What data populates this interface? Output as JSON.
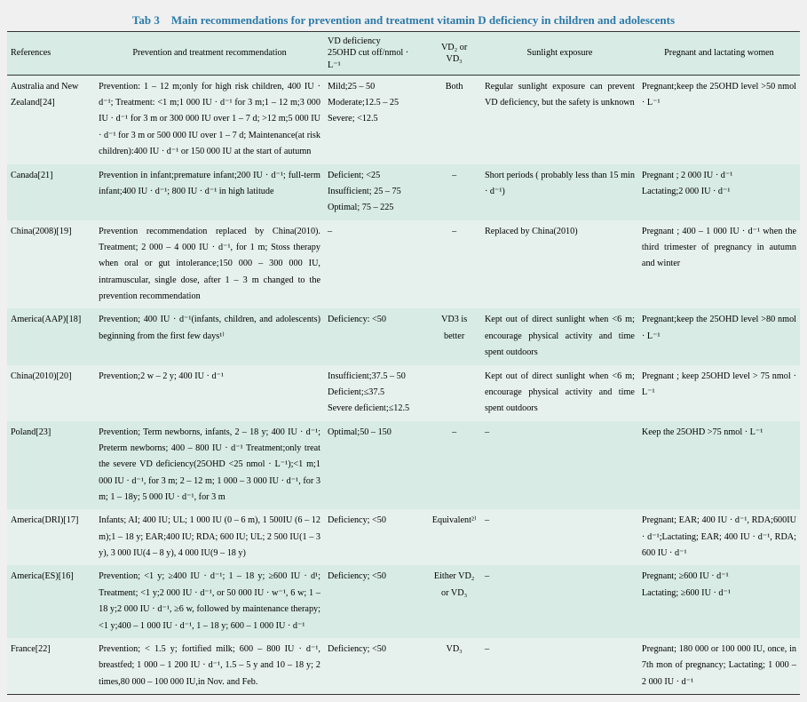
{
  "title": "Tab 3　Main recommendations for prevention and treatment vitamin D deficiency in children and adolescents",
  "columns": {
    "ref": "References",
    "prev": "Prevention and treatment recommendation",
    "vd": "VD deficiency\n25OHD cut off/nmol · L⁻¹",
    "vd2": "VD₂ or\nVD₃",
    "sun": "Sunlight exposure",
    "preg": "Pregnant and lactating women"
  },
  "rows": [
    {
      "ref": "Australia and New Zealand[24]",
      "prev": "Prevention: 1 – 12 m;only for high risk children, 400 IU · d⁻¹; Treatment: <1 m;1 000 IU · d⁻¹ for 3 m;1 – 12 m;3 000 IU · d⁻¹ for 3 m or 300 000 IU over 1 – 7 d; >12 m;5 000 IU · d⁻¹ for 3 m or 500 000 IU over 1 – 7 d; Maintenance(at risk children):400 IU · d⁻¹ or 150 000 IU at the start of autumn",
      "vd": "Mild;25 – 50\nModerate;12.5 – 25\nSevere; <12.5",
      "vd2": "Both",
      "sun": "Regular sunlight exposure can prevent VD deficiency, but the safety is unknown",
      "preg": "Pregnant;keep the 25OHD level >50 nmol · L⁻¹"
    },
    {
      "ref": "Canada[21]",
      "prev": "Prevention in infant;premature infant;200 IU · d⁻¹; full-term infant;400 IU · d⁻¹; 800 IU · d⁻¹ in high latitude",
      "vd": "Deficient; <25\nInsufficient; 25 – 75\nOptimal; 75 – 225",
      "vd2": "–",
      "sun": "Short periods ( probably less than 15 min · d⁻¹)",
      "preg": "Pregnant ; 2 000 IU · d⁻¹\nLactating;2 000 IU · d⁻¹"
    },
    {
      "ref": "China(2008)[19]",
      "prev": "Prevention recommendation replaced by China(2010). Treatment; 2 000 – 4 000 IU · d⁻¹, for 1 m; Stoss therapy when oral or gut intolerance;150 000 – 300 000 IU, intramuscular, single dose, after 1 – 3 m changed to the prevention recommendation",
      "vd": "–",
      "vd2": "–",
      "sun": "Replaced by China(2010)",
      "preg": "Pregnant ; 400 – 1 000 IU · d⁻¹ when the third trimester of pregnancy in autumn and winter"
    },
    {
      "ref": "America(AAP)[18]",
      "prev": "Prevention; 400 IU · d⁻¹(infants, children, and adolescents) beginning from the first few days¹⁾",
      "vd": "Deficiency: <50",
      "vd2": "VD3 is better",
      "sun": "Kept out of direct sunlight when <6 m; encourage physical activity and time spent outdoors",
      "preg": "Pregnant;keep the 25OHD level >80 nmol · L⁻¹"
    },
    {
      "ref": "China(2010)[20]",
      "prev": "Prevention;2 w – 2 y; 400 IU · d⁻¹",
      "vd": "Insufficient;37.5 – 50\nDeficient;≤37.5\nSevere deficient;≤12.5",
      "vd2": "",
      "sun": "Kept out of direct sunlight when <6 m; encourage physical activity and time spent outdoors",
      "preg": "Pregnant ; keep 25OHD level > 75 nmol · L⁻¹"
    },
    {
      "ref": "Poland[23]",
      "prev": "Prevention; Term newborns, infants, 2 – 18 y; 400 IU · d⁻¹; Preterm newborns; 400 – 800 IU · d⁻¹ Treatment;only treat the severe VD deficiency(25OHD <25 nmol · L⁻¹);<1 m;1 000 IU · d⁻¹, for 3 m; 2 – 12 m; 1 000 – 3 000 IU · d⁻¹, for 3 m; 1 – 18y; 5 000 IU · d⁻¹, for 3 m",
      "vd": "Optimal;50 – 150",
      "vd2": "–",
      "sun": "–",
      "preg": "Keep the 25OHD >75 nmol · L⁻¹"
    },
    {
      "ref": "America(DRI)[17]",
      "prev": "Infants; AI; 400 IU; UL; 1 000 IU (0 – 6 m), 1 500IU (6 – 12 m);1 – 18 y; EAR;400 IU; RDA; 600 IU; UL; 2 500 IU(1 – 3 y), 3 000 IU(4 – 8 y), 4 000 IU(9 – 18 y)",
      "vd": "Deficiency; <50",
      "vd2": "Equivalent²⁾",
      "sun": "–",
      "preg": "Pregnant; EAR; 400 IU · d⁻¹, RDA;600IU · d⁻¹;Lactating; EAR; 400 IU · d⁻¹, RDA; 600 IU · d⁻¹"
    },
    {
      "ref": "America(ES)[16]",
      "prev": "Prevention; <1 y; ≥400 IU · d⁻¹; 1 – 18 y; ≥600 IU · d¹; Treatment; <1 y;2 000 IU · d⁻¹, or 50 000 IU · w⁻¹, 6 w; 1 – 18 y;2 000 IU · d⁻¹, ≥6 w, followed by maintenance therapy; <1 y;400 – 1 000 IU · d⁻¹, 1 – 18 y; 600 – 1 000 IU · d⁻¹",
      "vd": "Deficiency; <50",
      "vd2": "Either VD₂ or VD₃",
      "sun": "–",
      "preg": "Pregnant; ≥600 IU · d⁻¹\nLactating; ≥600 IU · d⁻¹"
    },
    {
      "ref": "France[22]",
      "prev": "Prevention; < 1.5 y; fortified milk; 600 – 800 IU · d⁻¹, breastfed; 1 000 – 1 200 IU · d⁻¹, 1.5 – 5 y and 10 – 18 y; 2 times,80 000 – 100 000 IU,in Nov. and Feb.",
      "vd": "Deficiency; <50",
      "vd2": "VD₃",
      "sun": "–",
      "preg": "Pregnant; 180 000 or 100 000 IU, once, in 7th mon of pregnancy; Lactating; 1 000 – 2 000 IU · d⁻¹"
    }
  ]
}
